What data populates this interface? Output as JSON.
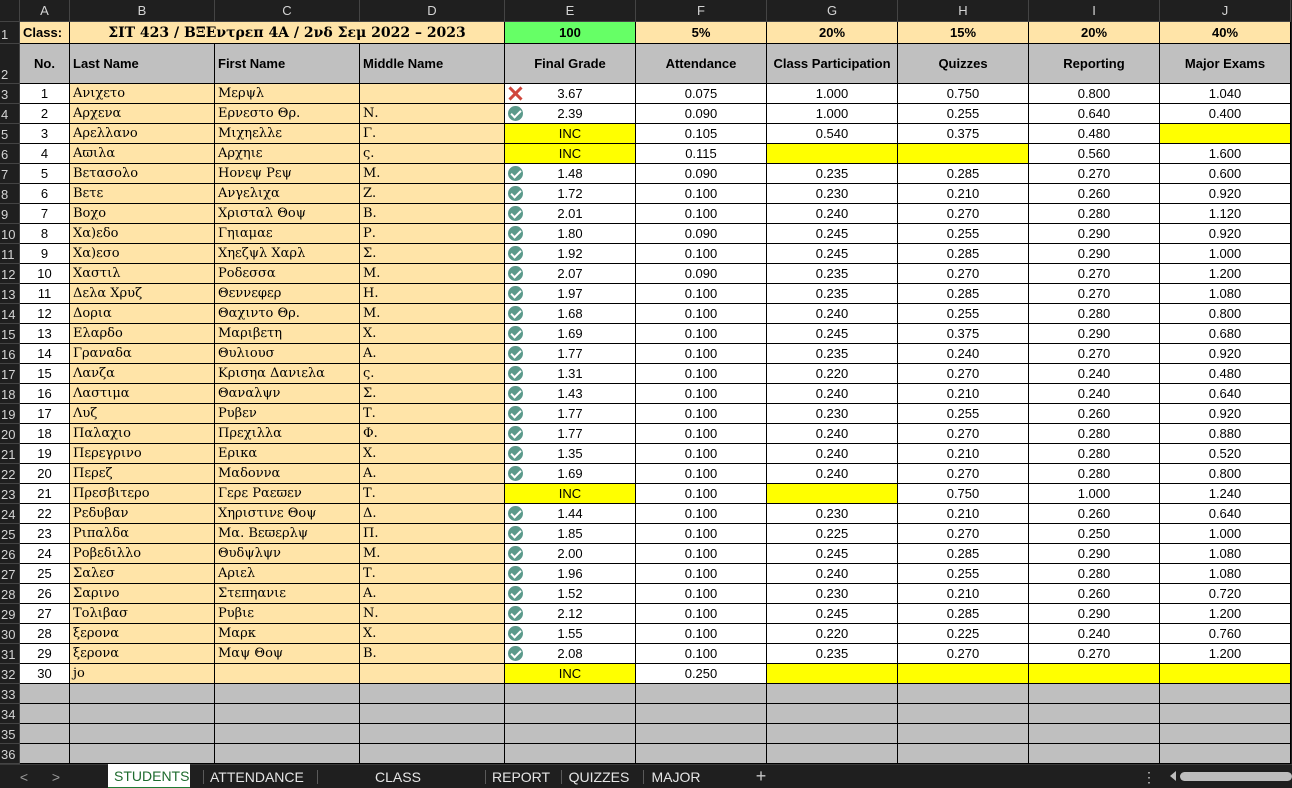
{
  "columns": [
    "A",
    "B",
    "C",
    "D",
    "E",
    "F",
    "G",
    "H",
    "I",
    "J"
  ],
  "row1": {
    "label": "Class:",
    "class_title": "ΣΙΤ 423 / ΒΞΕντρεπ 4Α / 2νδ Σεμ 2022 – 2023",
    "final_weight": "100",
    "attendance_weight": "5%",
    "participation_weight": "20%",
    "quizzes_weight": "15%",
    "reporting_weight": "20%",
    "exams_weight": "40%"
  },
  "headers": {
    "no": "No.",
    "last_name": "Last Name",
    "first_name": "First Name",
    "middle_name": "Middle Name",
    "final_grade": "Final Grade",
    "attendance": "Attendance",
    "participation": "Class Participation",
    "quizzes": "Quizzes",
    "reporting": "Reporting",
    "major_exams": "Major Exams"
  },
  "students": [
    {
      "row": "3",
      "no": "1",
      "last": "Ανιχετο",
      "first": "Μερψλ",
      "middle": "",
      "grade": "3.67",
      "status": "x",
      "att": "0.075",
      "part": "1.000",
      "quiz": "0.750",
      "rep": "0.800",
      "exam": "1.040"
    },
    {
      "row": "4",
      "no": "2",
      "last": "Αρχενα",
      "first": "Ερνεστο Θρ.",
      "middle": "Ν.",
      "grade": "2.39",
      "status": "check",
      "att": "0.090",
      "part": "1.000",
      "quiz": "0.255",
      "rep": "0.640",
      "exam": "0.400"
    },
    {
      "row": "5",
      "no": "3",
      "last": "Αρελλανο",
      "first": "Μιχηελλε",
      "middle": "Γ.",
      "grade": "INC",
      "status": "inc",
      "att": "0.105",
      "part": "0.540",
      "quiz": "0.375",
      "rep": "0.480",
      "exam": "",
      "exam_yellow": true
    },
    {
      "row": "6",
      "no": "4",
      "last": "Αϖιλα",
      "first": "Αρχηιε",
      "middle": "ς.",
      "grade": "INC",
      "status": "inc",
      "att": "0.115",
      "part": "",
      "part_yellow": true,
      "quiz": "",
      "quiz_yellow": true,
      "rep": "0.560",
      "exam": "1.600"
    },
    {
      "row": "7",
      "no": "5",
      "last": "Βετασολο",
      "first": "Ηονεψ Ρεψ",
      "middle": "Μ.",
      "grade": "1.48",
      "status": "check",
      "att": "0.090",
      "part": "0.235",
      "quiz": "0.285",
      "rep": "0.270",
      "exam": "0.600"
    },
    {
      "row": "8",
      "no": "6",
      "last": "Βετε",
      "first": "Ανγελιχα",
      "middle": "Ζ.",
      "grade": "1.72",
      "status": "check",
      "att": "0.100",
      "part": "0.230",
      "quiz": "0.210",
      "rep": "0.260",
      "exam": "0.920"
    },
    {
      "row": "9",
      "no": "7",
      "last": "Βοχο",
      "first": "Χρισταλ Θοψ",
      "middle": "Β.",
      "grade": "2.01",
      "status": "check",
      "att": "0.100",
      "part": "0.240",
      "quiz": "0.270",
      "rep": "0.280",
      "exam": "1.120"
    },
    {
      "row": "10",
      "no": "8",
      "last": "Χα)εδο",
      "first": "Γηιαμαε",
      "middle": "Ρ.",
      "grade": "1.80",
      "status": "check",
      "att": "0.090",
      "part": "0.245",
      "quiz": "0.255",
      "rep": "0.290",
      "exam": "0.920"
    },
    {
      "row": "11",
      "no": "9",
      "last": "Χα)εσο",
      "first": "Χηεζψλ Χαρλ",
      "middle": "Σ.",
      "grade": "1.92",
      "status": "check",
      "att": "0.100",
      "part": "0.245",
      "quiz": "0.285",
      "rep": "0.290",
      "exam": "1.000"
    },
    {
      "row": "12",
      "no": "10",
      "last": "Χαστιλ",
      "first": "Ροδεσσα",
      "middle": "Μ.",
      "grade": "2.07",
      "status": "check",
      "att": "0.090",
      "part": "0.235",
      "quiz": "0.270",
      "rep": "0.270",
      "exam": "1.200"
    },
    {
      "row": "13",
      "no": "11",
      "last": "Δελα Χρυζ",
      "first": "Θεννεφερ",
      "middle": "Η.",
      "grade": "1.97",
      "status": "check",
      "att": "0.100",
      "part": "0.235",
      "quiz": "0.285",
      "rep": "0.270",
      "exam": "1.080"
    },
    {
      "row": "14",
      "no": "12",
      "last": "Δορια",
      "first": "Θαχιντο Θρ.",
      "middle": "Μ.",
      "grade": "1.68",
      "status": "check",
      "att": "0.100",
      "part": "0.240",
      "quiz": "0.255",
      "rep": "0.280",
      "exam": "0.800"
    },
    {
      "row": "15",
      "no": "13",
      "last": "Ελαρδο",
      "first": "Μαριβετη",
      "middle": "Χ.",
      "grade": "1.69",
      "status": "check",
      "att": "0.100",
      "part": "0.245",
      "quiz": "0.375",
      "rep": "0.290",
      "exam": "0.680"
    },
    {
      "row": "16",
      "no": "14",
      "last": "Γραναδα",
      "first": "Θυλιουσ",
      "middle": "Α.",
      "grade": "1.77",
      "status": "check",
      "att": "0.100",
      "part": "0.235",
      "quiz": "0.240",
      "rep": "0.270",
      "exam": "0.920"
    },
    {
      "row": "17",
      "no": "15",
      "last": "Λανζα",
      "first": "Κρισηα Δανιελα",
      "middle": "ς.",
      "grade": "1.31",
      "status": "check",
      "att": "0.100",
      "part": "0.220",
      "quiz": "0.270",
      "rep": "0.240",
      "exam": "0.480"
    },
    {
      "row": "18",
      "no": "16",
      "last": "Λαστιμα",
      "first": "Θαναλψν",
      "middle": "Σ.",
      "grade": "1.43",
      "status": "check",
      "att": "0.100",
      "part": "0.240",
      "quiz": "0.210",
      "rep": "0.240",
      "exam": "0.640"
    },
    {
      "row": "19",
      "no": "17",
      "last": "Λυζ",
      "first": "Ρυβεν",
      "middle": "Τ.",
      "grade": "1.77",
      "status": "check",
      "att": "0.100",
      "part": "0.230",
      "quiz": "0.255",
      "rep": "0.260",
      "exam": "0.920"
    },
    {
      "row": "20",
      "no": "18",
      "last": "Παλαχιο",
      "first": "Πρεχιλλα",
      "middle": "Φ.",
      "grade": "1.77",
      "status": "check",
      "att": "0.100",
      "part": "0.240",
      "quiz": "0.270",
      "rep": "0.280",
      "exam": "0.880"
    },
    {
      "row": "21",
      "no": "19",
      "last": "Περεγρινο",
      "first": "Ερικα",
      "middle": "Χ.",
      "grade": "1.35",
      "status": "check",
      "att": "0.100",
      "part": "0.240",
      "quiz": "0.210",
      "rep": "0.280",
      "exam": "0.520"
    },
    {
      "row": "22",
      "no": "20",
      "last": "Περεζ",
      "first": "Μαδοννα",
      "middle": "Α.",
      "grade": "1.69",
      "status": "check",
      "att": "0.100",
      "part": "0.240",
      "quiz": "0.270",
      "rep": "0.280",
      "exam": "0.800"
    },
    {
      "row": "23",
      "no": "21",
      "last": "Πρεσβιτερο",
      "first": "Γερε Ραεϖεν",
      "middle": "Τ.",
      "grade": "INC",
      "status": "inc",
      "att": "0.100",
      "part": "",
      "part_yellow": true,
      "quiz": "0.750",
      "rep": "1.000",
      "exam": "1.240"
    },
    {
      "row": "24",
      "no": "22",
      "last": "Ρεδυβαν",
      "first": "Χηριστινε Θοψ",
      "middle": "Δ.",
      "grade": "1.44",
      "status": "check",
      "att": "0.100",
      "part": "0.230",
      "quiz": "0.210",
      "rep": "0.260",
      "exam": "0.640"
    },
    {
      "row": "25",
      "no": "23",
      "last": "Ριπαλδα",
      "first": "Μα. Βεϖερλψ",
      "middle": "Π.",
      "grade": "1.85",
      "status": "check",
      "att": "0.100",
      "part": "0.225",
      "quiz": "0.270",
      "rep": "0.250",
      "exam": "1.000"
    },
    {
      "row": "26",
      "no": "24",
      "last": "Ροβεδιλλο",
      "first": "Θυδψλψν",
      "middle": "Μ.",
      "grade": "2.00",
      "status": "check",
      "att": "0.100",
      "part": "0.245",
      "quiz": "0.285",
      "rep": "0.290",
      "exam": "1.080"
    },
    {
      "row": "27",
      "no": "25",
      "last": "Σαλεσ",
      "first": "Αριελ",
      "middle": "Τ.",
      "grade": "1.96",
      "status": "check",
      "att": "0.100",
      "part": "0.240",
      "quiz": "0.255",
      "rep": "0.280",
      "exam": "1.080"
    },
    {
      "row": "28",
      "no": "26",
      "last": "Σαρινο",
      "first": "Στεπηανιε",
      "middle": "Α.",
      "grade": "1.52",
      "status": "check",
      "att": "0.100",
      "part": "0.230",
      "quiz": "0.210",
      "rep": "0.260",
      "exam": "0.720"
    },
    {
      "row": "29",
      "no": "27",
      "last": "Τολιβασ",
      "first": "Ρυβιε",
      "middle": "Ν.",
      "grade": "2.12",
      "status": "check",
      "att": "0.100",
      "part": "0.245",
      "quiz": "0.285",
      "rep": "0.290",
      "exam": "1.200"
    },
    {
      "row": "30",
      "no": "28",
      "last": "ξερονα",
      "first": "Μαρκ",
      "middle": "Χ.",
      "grade": "1.55",
      "status": "check",
      "att": "0.100",
      "part": "0.220",
      "quiz": "0.225",
      "rep": "0.240",
      "exam": "0.760"
    },
    {
      "row": "31",
      "no": "29",
      "last": "ξερονα",
      "first": "Μαψ Θοψ",
      "middle": "Β.",
      "grade": "2.08",
      "status": "check",
      "att": "0.100",
      "part": "0.235",
      "quiz": "0.270",
      "rep": "0.270",
      "exam": "1.200"
    },
    {
      "row": "32",
      "no": "30",
      "last": "jo",
      "first": "",
      "middle": "",
      "grade": "INC",
      "status": "inc",
      "att": "0.250",
      "part": "",
      "part_yellow": true,
      "quiz": "",
      "quiz_yellow": true,
      "rep": "",
      "rep_yellow": true,
      "exam": "",
      "exam_yellow": true
    }
  ],
  "empty_rows": [
    "33",
    "34",
    "35",
    "36"
  ],
  "tabs": [
    {
      "label": "STUDENTS",
      "active": true
    },
    {
      "label": "ATTENDANCE",
      "active": false
    },
    {
      "label": "CLASS PARTICIPATION",
      "active": false
    },
    {
      "label": "REPORT",
      "active": false
    },
    {
      "label": "QUIZZES",
      "active": false
    },
    {
      "label": "MAJOR",
      "active": false
    }
  ],
  "tabbar": {
    "add": "+",
    "more": "⋮",
    "prev": "<",
    "next": ">"
  }
}
